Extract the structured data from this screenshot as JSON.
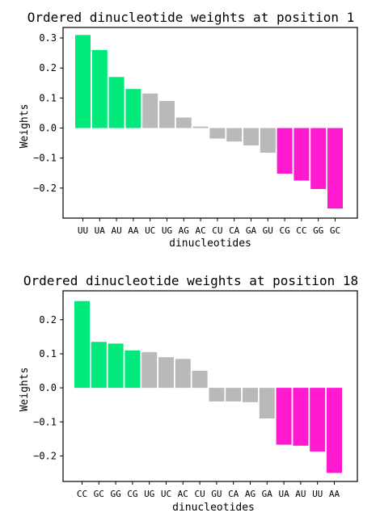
{
  "chart_data": [
    {
      "type": "bar",
      "title": "Ordered dinucleotide weights at position 1",
      "xlabel": "dinucleotides",
      "ylabel": "Weights",
      "categories": [
        "UU",
        "UA",
        "AU",
        "AA",
        "UC",
        "UG",
        "AG",
        "AC",
        "CU",
        "CA",
        "GA",
        "GU",
        "CG",
        "CC",
        "GG",
        "GC"
      ],
      "values": [
        0.31,
        0.26,
        0.17,
        0.13,
        0.115,
        0.09,
        0.035,
        0.005,
        -0.035,
        -0.045,
        -0.058,
        -0.082,
        -0.152,
        -0.175,
        -0.203,
        -0.268
      ],
      "bar_groups": [
        "positive",
        "positive",
        "positive",
        "positive",
        "neutral",
        "neutral",
        "neutral",
        "neutral",
        "neutral",
        "neutral",
        "neutral",
        "neutral",
        "negative",
        "negative",
        "negative",
        "negative"
      ],
      "ylim": [
        -0.3,
        0.335
      ],
      "yticks": [
        0.3,
        0.2,
        0.1,
        0.0,
        -0.1,
        -0.2
      ],
      "ytick_labels": [
        "0.3",
        "0.2",
        "0.1",
        "0.0",
        "−0.1",
        "−0.2"
      ],
      "grid": false,
      "legend": "none"
    },
    {
      "type": "bar",
      "title": "Ordered dinucleotide weights at position 18",
      "xlabel": "dinucleotides",
      "ylabel": "Weights",
      "categories": [
        "CC",
        "GC",
        "GG",
        "CG",
        "UG",
        "UC",
        "AC",
        "CU",
        "GU",
        "CA",
        "AG",
        "GA",
        "UA",
        "AU",
        "UU",
        "AA"
      ],
      "values": [
        0.255,
        0.135,
        0.13,
        0.11,
        0.105,
        0.09,
        0.085,
        0.05,
        -0.04,
        -0.04,
        -0.042,
        -0.09,
        -0.167,
        -0.17,
        -0.187,
        -0.25
      ],
      "bar_groups": [
        "positive",
        "positive",
        "positive",
        "positive",
        "neutral",
        "neutral",
        "neutral",
        "neutral",
        "neutral",
        "neutral",
        "neutral",
        "neutral",
        "negative",
        "negative",
        "negative",
        "negative"
      ],
      "ylim": [
        -0.275,
        0.285
      ],
      "yticks": [
        0.2,
        0.1,
        0.0,
        -0.1,
        -0.2
      ],
      "ytick_labels": [
        "0.2",
        "0.1",
        "0.0",
        "−0.1",
        "−0.2"
      ],
      "grid": false,
      "legend": "none"
    }
  ],
  "colors": {
    "positive": "#00e97a",
    "neutral": "#b9b9b9",
    "negative": "#ff1ad0",
    "axis": "#000000"
  }
}
